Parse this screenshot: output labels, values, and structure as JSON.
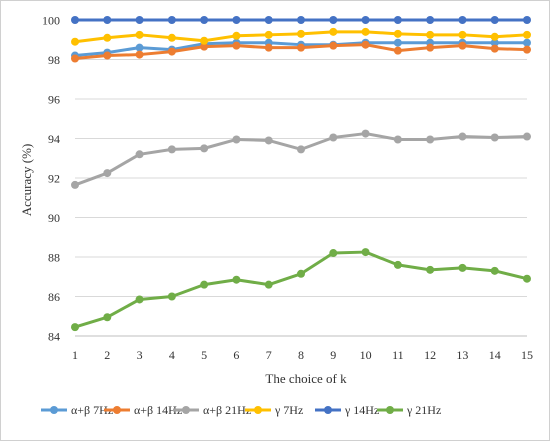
{
  "chart_data": {
    "type": "line",
    "title": "",
    "xlabel": "The choice of k",
    "ylabel": "Accuracy (%)",
    "x": [
      1,
      2,
      3,
      4,
      5,
      6,
      7,
      8,
      9,
      10,
      11,
      12,
      13,
      14,
      15
    ],
    "ylim": [
      84,
      100
    ],
    "yticks": [
      84,
      86,
      88,
      90,
      92,
      94,
      96,
      98,
      100
    ],
    "grid": "horizontal",
    "legend_position": "bottom",
    "series": [
      {
        "name": "α+β 7Hz",
        "color": "#5b9bd5",
        "values": [
          98.2,
          98.35,
          98.6,
          98.5,
          98.8,
          98.85,
          98.85,
          98.75,
          98.75,
          98.85,
          98.85,
          98.85,
          98.85,
          98.85,
          98.85
        ]
      },
      {
        "name": "α+β 14Hz",
        "color": "#ed7d31",
        "values": [
          98.05,
          98.2,
          98.25,
          98.4,
          98.65,
          98.7,
          98.6,
          98.6,
          98.7,
          98.75,
          98.45,
          98.6,
          98.7,
          98.55,
          98.5
        ]
      },
      {
        "name": "α+β 21Hz",
        "color": "#a5a5a5",
        "values": [
          91.65,
          92.25,
          93.2,
          93.45,
          93.5,
          93.95,
          93.9,
          93.45,
          94.05,
          94.25,
          93.95,
          93.95,
          94.1,
          94.05,
          94.1
        ]
      },
      {
        "name": "γ 7Hz",
        "color": "#ffc000",
        "values": [
          98.9,
          99.1,
          99.25,
          99.1,
          98.95,
          99.2,
          99.25,
          99.3,
          99.4,
          99.4,
          99.3,
          99.25,
          99.25,
          99.15,
          99.25
        ]
      },
      {
        "name": "γ 14Hz",
        "color": "#4472c4",
        "values": [
          100,
          100,
          100,
          100,
          100,
          100,
          100,
          100,
          100,
          100,
          100,
          100,
          100,
          100,
          100
        ]
      },
      {
        "name": "γ 21Hz",
        "color": "#70ad47",
        "values": [
          84.45,
          84.95,
          85.85,
          86.0,
          86.6,
          86.85,
          86.6,
          87.15,
          88.2,
          88.25,
          87.6,
          87.35,
          87.45,
          87.3,
          86.9
        ]
      }
    ]
  }
}
